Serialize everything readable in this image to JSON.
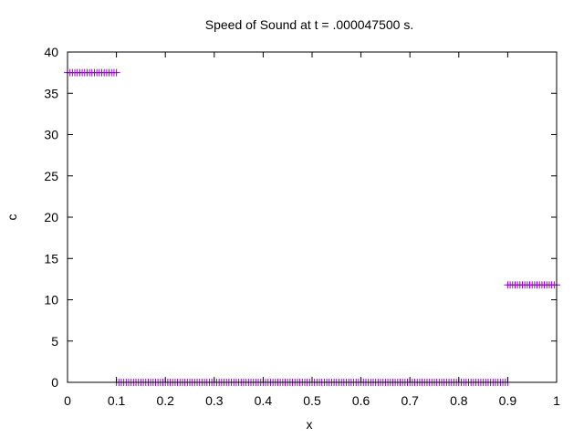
{
  "chart_data": {
    "type": "scatter",
    "title": "Speed of Sound at t = .000047500 s.",
    "xlabel": "x",
    "ylabel": "c",
    "xlim": [
      0,
      1
    ],
    "ylim": [
      0,
      40
    ],
    "x_ticks": [
      "0",
      "0.1",
      "0.2",
      "0.3",
      "0.4",
      "0.5",
      "0.6",
      "0.7",
      "0.8",
      "0.9",
      "1"
    ],
    "y_ticks": [
      "0",
      "5",
      "10",
      "15",
      "20",
      "25",
      "30",
      "35",
      "40"
    ],
    "marker": "+",
    "color": "#9400d3",
    "grid": false,
    "legend": "none",
    "segments": [
      {
        "x_start": 0.0,
        "x_end": 0.1,
        "count": 21,
        "y": 37.5
      },
      {
        "x_start": 0.1,
        "x_end": 0.9,
        "count": 161,
        "y": 0.0
      },
      {
        "x_start": 0.9,
        "x_end": 1.0,
        "count": 21,
        "y": 11.8
      }
    ]
  }
}
